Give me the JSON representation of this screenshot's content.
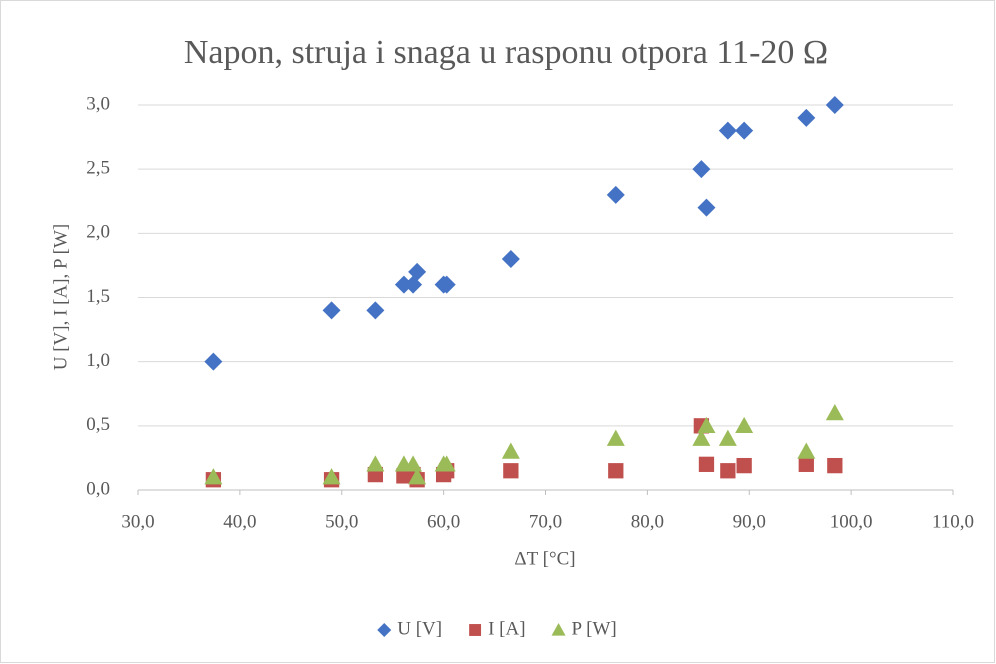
{
  "chart_data": {
    "type": "scatter",
    "title": "Napon, struja i snaga u rasponu otpora 11-20 Ω",
    "x_label": "ΔT [°C]",
    "y_label": "U [V], I [A], P [W]",
    "xlim": [
      30,
      110
    ],
    "xticks": [
      {
        "value": 30,
        "label": "30,0"
      },
      {
        "value": 40,
        "label": "40,0"
      },
      {
        "value": 50,
        "label": "50,0"
      },
      {
        "value": 60,
        "label": "60,0"
      },
      {
        "value": 70,
        "label": "70,0"
      },
      {
        "value": 80,
        "label": "80,0"
      },
      {
        "value": 90,
        "label": "90,0"
      },
      {
        "value": 100,
        "label": "100,0"
      },
      {
        "value": 110,
        "label": "110,0"
      }
    ],
    "ylim": [
      0,
      3
    ],
    "yticks": [
      {
        "value": 0,
        "label": "0,0"
      },
      {
        "value": 0.5,
        "label": "0,5"
      },
      {
        "value": 1,
        "label": "1,0"
      },
      {
        "value": 1.5,
        "label": "1,5"
      },
      {
        "value": 2,
        "label": "2,0"
      },
      {
        "value": 2.5,
        "label": "2,5"
      },
      {
        "value": 3,
        "label": "3,0"
      }
    ],
    "grid": true,
    "legend": "bottom",
    "series": [
      {
        "name": "U [V]",
        "color": "#4472c4",
        "marker": "diamond",
        "x": [
          37.4,
          49.0,
          53.3,
          56.1,
          57.0,
          57.4,
          60.0,
          60.3,
          66.6,
          76.9,
          85.3,
          85.8,
          87.9,
          89.5,
          95.6,
          98.4
        ],
        "values": [
          1.0,
          1.4,
          1.4,
          1.6,
          1.6,
          1.7,
          1.6,
          1.6,
          1.8,
          2.3,
          2.5,
          2.2,
          2.8,
          2.8,
          2.9,
          3.0
        ]
      },
      {
        "name": "I [A]",
        "color": "#c0504d",
        "marker": "square",
        "x": [
          37.4,
          49.0,
          53.3,
          56.1,
          57.0,
          57.4,
          60.0,
          60.3,
          66.6,
          76.9,
          85.3,
          85.8,
          87.9,
          89.5,
          95.6,
          98.4
        ],
        "values": [
          0.08,
          0.08,
          0.12,
          0.11,
          0.12,
          0.08,
          0.12,
          0.15,
          0.15,
          0.15,
          0.5,
          0.2,
          0.15,
          0.19,
          0.2,
          0.19
        ]
      },
      {
        "name": "P [W]",
        "color": "#9bbb59",
        "marker": "triangle",
        "x": [
          37.4,
          49.0,
          53.3,
          56.1,
          57.0,
          57.4,
          60.0,
          60.3,
          66.6,
          76.9,
          85.3,
          85.8,
          87.9,
          89.5,
          95.6,
          98.4
        ],
        "values": [
          0.1,
          0.1,
          0.2,
          0.2,
          0.2,
          0.1,
          0.2,
          0.2,
          0.3,
          0.4,
          0.4,
          0.5,
          0.4,
          0.5,
          0.3,
          0.6
        ]
      }
    ]
  }
}
